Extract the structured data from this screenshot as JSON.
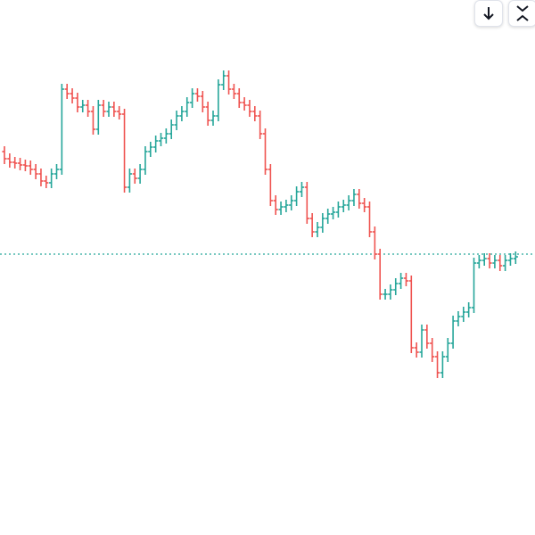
{
  "chart_data": {
    "type": "ohlc",
    "ylim": [
      0,
      600
    ],
    "up_color": "#26a69a",
    "down_color": "#ef5350",
    "price_line": 315,
    "open": [
      430,
      422,
      418,
      417,
      415,
      414,
      410,
      405,
      397,
      395,
      405,
      410,
      500,
      495,
      490,
      480,
      482,
      475,
      455,
      482,
      475,
      480,
      475,
      472,
      390,
      405,
      400,
      410,
      430,
      435,
      442,
      445,
      450,
      460,
      470,
      475,
      485,
      495,
      492,
      480,
      465,
      470,
      505,
      515,
      500,
      495,
      485,
      482,
      475,
      470,
      450,
      410,
      375,
      365,
      368,
      370,
      375,
      385,
      390,
      355,
      340,
      345,
      355,
      360,
      362,
      368,
      370,
      375,
      382,
      372,
      368,
      340,
      315,
      270,
      270,
      275,
      282,
      288,
      285,
      210,
      205,
      230,
      215,
      200,
      182,
      200,
      215,
      240,
      245,
      250,
      255,
      305,
      308,
      310,
      305,
      308,
      302,
      308,
      310
    ],
    "high": [
      436,
      428,
      424,
      423,
      421,
      420,
      416,
      411,
      403,
      411,
      416,
      506,
      506,
      501,
      496,
      488,
      488,
      481,
      488,
      488,
      486,
      486,
      481,
      478,
      411,
      411,
      416,
      436,
      441,
      448,
      451,
      456,
      466,
      476,
      481,
      491,
      501,
      501,
      498,
      486,
      476,
      511,
      521,
      521,
      506,
      501,
      491,
      488,
      481,
      476,
      456,
      416,
      381,
      374,
      376,
      381,
      391,
      396,
      396,
      361,
      351,
      361,
      366,
      368,
      374,
      376,
      381,
      388,
      388,
      378,
      374,
      346,
      321,
      276,
      281,
      288,
      294,
      294,
      291,
      216,
      236,
      236,
      221,
      206,
      206,
      221,
      246,
      251,
      256,
      261,
      311,
      314,
      316,
      316,
      314,
      314,
      314,
      316,
      318
    ],
    "low": [
      416,
      412,
      411,
      409,
      408,
      404,
      399,
      391,
      389,
      389,
      399,
      404,
      489,
      484,
      474,
      474,
      469,
      449,
      449,
      469,
      469,
      469,
      466,
      384,
      384,
      394,
      394,
      404,
      424,
      429,
      436,
      439,
      444,
      454,
      464,
      469,
      479,
      486,
      474,
      459,
      459,
      464,
      499,
      494,
      489,
      479,
      476,
      469,
      464,
      444,
      404,
      369,
      359,
      359,
      362,
      364,
      369,
      379,
      349,
      334,
      334,
      339,
      349,
      354,
      356,
      362,
      364,
      369,
      366,
      362,
      334,
      309,
      264,
      264,
      264,
      269,
      276,
      279,
      204,
      199,
      199,
      209,
      194,
      176,
      176,
      194,
      209,
      234,
      239,
      244,
      249,
      299,
      302,
      299,
      299,
      296,
      296,
      302,
      304
    ],
    "close": [
      422,
      418,
      417,
      415,
      414,
      410,
      405,
      397,
      395,
      405,
      410,
      500,
      495,
      490,
      480,
      482,
      475,
      455,
      482,
      475,
      480,
      475,
      472,
      390,
      405,
      400,
      410,
      430,
      435,
      442,
      445,
      450,
      460,
      470,
      475,
      485,
      495,
      492,
      480,
      465,
      470,
      505,
      515,
      500,
      495,
      485,
      482,
      475,
      470,
      450,
      410,
      375,
      365,
      368,
      370,
      375,
      385,
      390,
      355,
      340,
      345,
      355,
      360,
      362,
      368,
      370,
      375,
      382,
      372,
      368,
      340,
      315,
      270,
      270,
      275,
      282,
      288,
      285,
      210,
      205,
      230,
      215,
      200,
      182,
      200,
      215,
      240,
      245,
      250,
      255,
      305,
      308,
      310,
      305,
      308,
      302,
      308,
      310,
      312
    ]
  }
}
